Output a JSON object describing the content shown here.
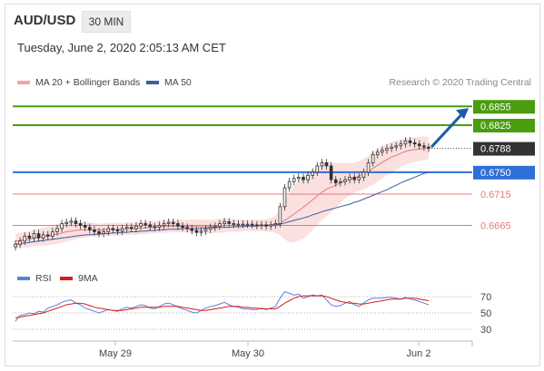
{
  "header": {
    "pair": "AUD/USD",
    "timeframe": "30 MIN",
    "datetime": "Tuesday, June 2, 2020 2:05:13 AM CET"
  },
  "legend": {
    "ma20": "MA 20 + Bollinger Bands",
    "ma50": "MA 50",
    "copyright": "Research © 2020 Trading Central"
  },
  "rsi_legend": {
    "rsi": "RSI",
    "ma9": "9MA"
  },
  "colors": {
    "resistance": "#4a9d0e",
    "support": "#2e6fd8",
    "pivot_support": "#e87878",
    "ma20_band": "#f8c7c7",
    "ma50": "#3a5ea0",
    "candle": "#333333",
    "last_price_bg": "#333333",
    "rsi_line": "#5b84d8",
    "rsi_ma": "#d81e1e",
    "arrow": "#1f5ba6"
  },
  "chart_data": [
    {
      "type": "candlestick",
      "ylim": [
        0.6605,
        0.688
      ],
      "x_ticks": [
        "May 29",
        "May 30",
        "Jun 2"
      ],
      "last_price": 0.6788,
      "levels": [
        {
          "value": 0.6855,
          "label": "0.6855",
          "kind": "resistance"
        },
        {
          "value": 0.6825,
          "label": "0.6825",
          "kind": "resistance"
        },
        {
          "value": 0.675,
          "label": "0.6750",
          "kind": "support"
        },
        {
          "value": 0.6715,
          "label": "0.6715",
          "kind": "pivot"
        },
        {
          "value": 0.6665,
          "label": "0.6665",
          "kind": "pivot"
        }
      ],
      "closes": [
        0.6635,
        0.664,
        0.6648,
        0.6645,
        0.6652,
        0.6645,
        0.665,
        0.6648,
        0.6655,
        0.666,
        0.6668,
        0.667,
        0.6672,
        0.6668,
        0.6665,
        0.6662,
        0.6658,
        0.6655,
        0.6652,
        0.6655,
        0.666,
        0.6658,
        0.6656,
        0.666,
        0.6662,
        0.666,
        0.6664,
        0.6668,
        0.6666,
        0.6663,
        0.6662,
        0.6665,
        0.6668,
        0.667,
        0.6668,
        0.6664,
        0.6662,
        0.666,
        0.6657,
        0.6654,
        0.6656,
        0.6659,
        0.6662,
        0.6664,
        0.6668,
        0.6671,
        0.6668,
        0.6667,
        0.6667,
        0.6667,
        0.6667,
        0.6666,
        0.6665,
        0.6666,
        0.6664,
        0.6666,
        0.6668,
        0.6695,
        0.6725,
        0.6735,
        0.674,
        0.6742,
        0.6738,
        0.6745,
        0.675,
        0.676,
        0.6765,
        0.676,
        0.6738,
        0.6733,
        0.6735,
        0.6738,
        0.6742,
        0.6738,
        0.6742,
        0.675,
        0.6765,
        0.6778,
        0.6782,
        0.6785,
        0.6788,
        0.679,
        0.6792,
        0.6795,
        0.68,
        0.6797,
        0.6795,
        0.6792,
        0.679,
        0.6788
      ],
      "ma20": [
        0.664,
        0.6641,
        0.6642,
        0.6643,
        0.6645,
        0.6646,
        0.6647,
        0.6648,
        0.665,
        0.6651,
        0.6653,
        0.6655,
        0.6656,
        0.6657,
        0.6658,
        0.6658,
        0.6658,
        0.6658,
        0.6658,
        0.6658,
        0.6659,
        0.6659,
        0.6659,
        0.6659,
        0.666,
        0.666,
        0.666,
        0.6661,
        0.6661,
        0.6662,
        0.6662,
        0.6663,
        0.6663,
        0.6664,
        0.6664,
        0.6664,
        0.6664,
        0.6664,
        0.6664,
        0.6663,
        0.6663,
        0.6663,
        0.6663,
        0.6664,
        0.6664,
        0.6665,
        0.6665,
        0.6665,
        0.6665,
        0.6665,
        0.6665,
        0.6665,
        0.6665,
        0.6665,
        0.6665,
        0.6666,
        0.6667,
        0.6669,
        0.6673,
        0.6678,
        0.6683,
        0.6689,
        0.6694,
        0.67,
        0.6706,
        0.6712,
        0.6718,
        0.6723,
        0.6726,
        0.6729,
        0.6733,
        0.6736,
        0.6739,
        0.6741,
        0.6744,
        0.6747,
        0.6751,
        0.6756,
        0.6761,
        0.6766,
        0.677,
        0.6774,
        0.6777,
        0.678,
        0.6783,
        0.6785,
        0.6786,
        0.6787,
        0.6788,
        0.6788
      ],
      "ma50": [
        0.6635,
        0.6636,
        0.6637,
        0.6638,
        0.6639,
        0.664,
        0.6641,
        0.6642,
        0.6643,
        0.6644,
        0.6645,
        0.6646,
        0.6647,
        0.6648,
        0.6649,
        0.665,
        0.665,
        0.6651,
        0.6651,
        0.6652,
        0.6652,
        0.6653,
        0.6653,
        0.6654,
        0.6654,
        0.6655,
        0.6655,
        0.6656,
        0.6656,
        0.6657,
        0.6657,
        0.6658,
        0.6658,
        0.6659,
        0.6659,
        0.6659,
        0.666,
        0.666,
        0.666,
        0.666,
        0.666,
        0.6661,
        0.6661,
        0.6661,
        0.6662,
        0.6662,
        0.6662,
        0.6663,
        0.6663,
        0.6663,
        0.6664,
        0.6664,
        0.6664,
        0.6665,
        0.6665,
        0.6665,
        0.6666,
        0.6667,
        0.6669,
        0.6671,
        0.6673,
        0.6675,
        0.6677,
        0.6679,
        0.6682,
        0.6684,
        0.6687,
        0.6689,
        0.6691,
        0.6693,
        0.6695,
        0.6697,
        0.6699,
        0.6702,
        0.6704,
        0.6707,
        0.671,
        0.6713,
        0.6716,
        0.6719,
        0.6722,
        0.6726,
        0.6729,
        0.6733,
        0.6736,
        0.6739,
        0.6742,
        0.6745,
        0.6748,
        0.675
      ],
      "bb_width": [
        0.0012,
        0.0012,
        0.0012,
        0.0013,
        0.0013,
        0.0014,
        0.0014,
        0.0015,
        0.0015,
        0.0016,
        0.0016,
        0.0016,
        0.0015,
        0.0014,
        0.0013,
        0.0012,
        0.0011,
        0.0011,
        0.001,
        0.001,
        0.001,
        0.001,
        0.001,
        0.001,
        0.001,
        0.001,
        0.001,
        0.001,
        0.001,
        0.001,
        0.001,
        0.001,
        0.001,
        0.001,
        0.001,
        0.001,
        0.001,
        0.001,
        0.0011,
        0.0011,
        0.0011,
        0.0011,
        0.0011,
        0.0011,
        0.0011,
        0.0011,
        0.001,
        0.001,
        0.001,
        0.0009,
        0.0009,
        0.0009,
        0.0009,
        0.0009,
        0.001,
        0.0011,
        0.0014,
        0.002,
        0.003,
        0.004,
        0.0045,
        0.0048,
        0.005,
        0.005,
        0.0048,
        0.0046,
        0.0045,
        0.0044,
        0.004,
        0.0036,
        0.0032,
        0.0028,
        0.0026,
        0.0024,
        0.0024,
        0.0024,
        0.0025,
        0.0026,
        0.0026,
        0.0026,
        0.0025,
        0.0024,
        0.0023,
        0.0022,
        0.0021,
        0.002,
        0.002,
        0.0019,
        0.0019,
        0.0018
      ],
      "forecast_arrow": {
        "from": 0.679,
        "to": 0.6855
      }
    },
    {
      "type": "line",
      "title": "RSI",
      "ylim": [
        20,
        80
      ],
      "y_ticks": [
        70,
        50,
        30
      ],
      "series": [
        {
          "name": "RSI",
          "values": [
            40,
            47,
            48,
            50,
            49,
            52,
            51,
            56,
            58,
            60,
            63,
            65,
            66,
            62,
            60,
            56,
            54,
            52,
            50,
            52,
            54,
            53,
            52,
            55,
            57,
            56,
            58,
            60,
            59,
            56,
            55,
            58,
            61,
            62,
            60,
            57,
            55,
            53,
            51,
            50,
            53,
            56,
            58,
            59,
            61,
            63,
            60,
            58,
            57,
            55,
            55,
            54,
            54,
            56,
            54,
            56,
            58,
            68,
            76,
            74,
            72,
            73,
            68,
            70,
            72,
            71,
            72,
            66,
            60,
            58,
            59,
            62,
            64,
            60,
            58,
            62,
            66,
            68,
            68,
            68,
            69,
            69,
            68,
            67,
            69,
            67,
            66,
            64,
            62,
            60
          ]
        },
        {
          "name": "9MA",
          "values": [
            44,
            45,
            46,
            47,
            48,
            49,
            50,
            52,
            54,
            56,
            58,
            60,
            61,
            62,
            62,
            61,
            59,
            57,
            56,
            55,
            54,
            53,
            53,
            53,
            54,
            55,
            56,
            57,
            57,
            57,
            57,
            57,
            58,
            58,
            58,
            58,
            57,
            56,
            55,
            54,
            53,
            53,
            54,
            55,
            56,
            57,
            58,
            58,
            58,
            57,
            57,
            56,
            56,
            55,
            55,
            55,
            55,
            58,
            62,
            65,
            68,
            70,
            71,
            71,
            71,
            71,
            71,
            70,
            68,
            66,
            64,
            63,
            62,
            62,
            61,
            61,
            62,
            63,
            64,
            65,
            66,
            67,
            67,
            67,
            68,
            68,
            68,
            67,
            66,
            65
          ]
        }
      ]
    }
  ]
}
